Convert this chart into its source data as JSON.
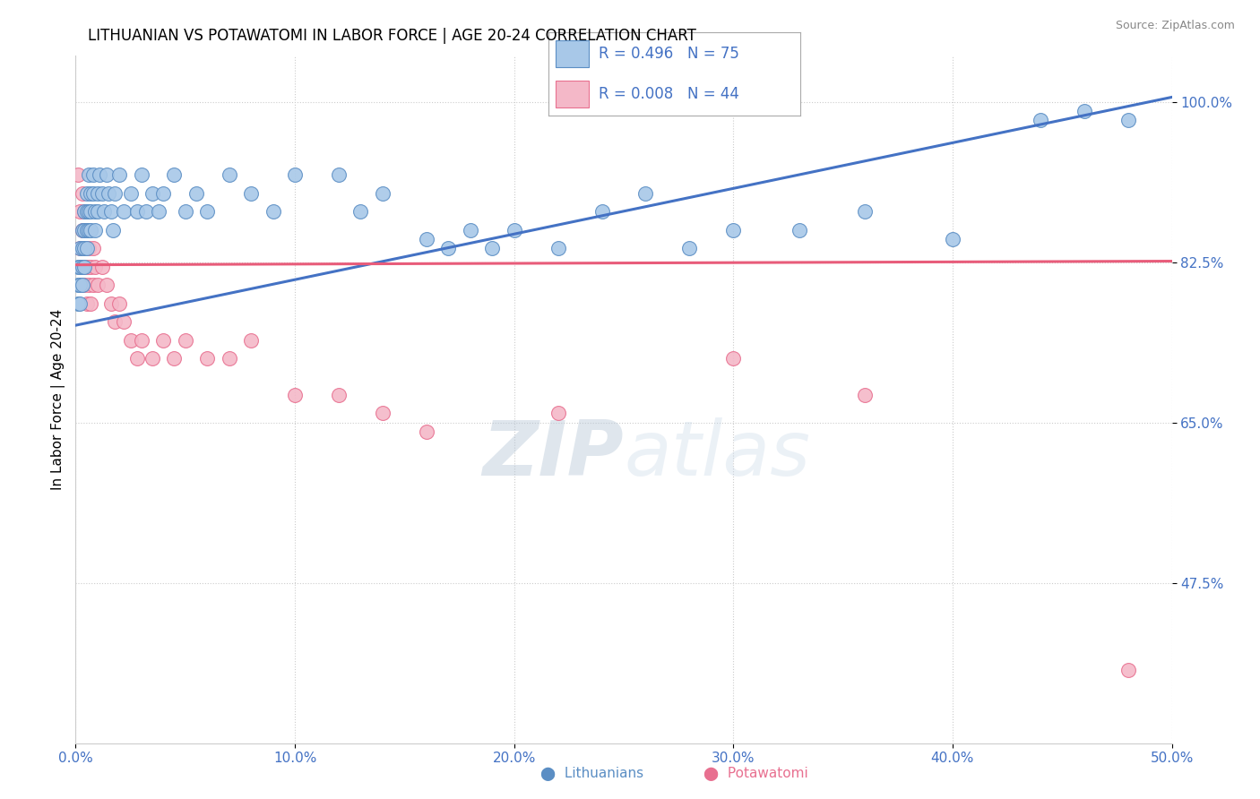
{
  "title": "LITHUANIAN VS POTAWATOMI IN LABOR FORCE | AGE 20-24 CORRELATION CHART",
  "source": "Source: ZipAtlas.com",
  "ylabel": "In Labor Force | Age 20-24",
  "xlim": [
    0.0,
    0.5
  ],
  "ylim": [
    0.3,
    1.05
  ],
  "xticks": [
    0.0,
    0.1,
    0.2,
    0.3,
    0.4,
    0.5
  ],
  "xticklabels": [
    "0.0%",
    "10.0%",
    "20.0%",
    "30.0%",
    "40.0%",
    "50.0%"
  ],
  "yticks": [
    0.475,
    0.65,
    0.825,
    1.0
  ],
  "yticklabels": [
    "47.5%",
    "65.0%",
    "82.5%",
    "100.0%"
  ],
  "grid_color": "#cccccc",
  "background_color": "#ffffff",
  "legend_blue_r": "R = 0.496",
  "legend_blue_n": "N = 75",
  "legend_pink_r": "R = 0.008",
  "legend_pink_n": "N = 44",
  "blue_color": "#A8C8E8",
  "pink_color": "#F4B8C8",
  "blue_edge_color": "#5B8EC4",
  "pink_edge_color": "#E87090",
  "blue_line_color": "#4472C4",
  "pink_line_color": "#E85C7A",
  "blue_trend": [
    0.0,
    0.756,
    0.5,
    1.005
  ],
  "pink_trend": [
    0.0,
    0.822,
    0.5,
    0.826
  ],
  "blue_scatter": [
    [
      0.001,
      0.82
    ],
    [
      0.001,
      0.8
    ],
    [
      0.001,
      0.78
    ],
    [
      0.002,
      0.84
    ],
    [
      0.002,
      0.82
    ],
    [
      0.002,
      0.8
    ],
    [
      0.002,
      0.78
    ],
    [
      0.003,
      0.86
    ],
    [
      0.003,
      0.84
    ],
    [
      0.003,
      0.82
    ],
    [
      0.003,
      0.8
    ],
    [
      0.004,
      0.88
    ],
    [
      0.004,
      0.86
    ],
    [
      0.004,
      0.84
    ],
    [
      0.004,
      0.82
    ],
    [
      0.005,
      0.9
    ],
    [
      0.005,
      0.88
    ],
    [
      0.005,
      0.86
    ],
    [
      0.005,
      0.84
    ],
    [
      0.006,
      0.92
    ],
    [
      0.006,
      0.88
    ],
    [
      0.006,
      0.86
    ],
    [
      0.007,
      0.9
    ],
    [
      0.007,
      0.88
    ],
    [
      0.007,
      0.86
    ],
    [
      0.008,
      0.92
    ],
    [
      0.008,
      0.9
    ],
    [
      0.009,
      0.88
    ],
    [
      0.009,
      0.86
    ],
    [
      0.01,
      0.9
    ],
    [
      0.01,
      0.88
    ],
    [
      0.011,
      0.92
    ],
    [
      0.012,
      0.9
    ],
    [
      0.013,
      0.88
    ],
    [
      0.014,
      0.92
    ],
    [
      0.015,
      0.9
    ],
    [
      0.016,
      0.88
    ],
    [
      0.017,
      0.86
    ],
    [
      0.018,
      0.9
    ],
    [
      0.02,
      0.92
    ],
    [
      0.022,
      0.88
    ],
    [
      0.025,
      0.9
    ],
    [
      0.028,
      0.88
    ],
    [
      0.03,
      0.92
    ],
    [
      0.032,
      0.88
    ],
    [
      0.035,
      0.9
    ],
    [
      0.038,
      0.88
    ],
    [
      0.04,
      0.9
    ],
    [
      0.045,
      0.92
    ],
    [
      0.05,
      0.88
    ],
    [
      0.055,
      0.9
    ],
    [
      0.06,
      0.88
    ],
    [
      0.07,
      0.92
    ],
    [
      0.08,
      0.9
    ],
    [
      0.09,
      0.88
    ],
    [
      0.1,
      0.92
    ],
    [
      0.12,
      0.92
    ],
    [
      0.13,
      0.88
    ],
    [
      0.14,
      0.9
    ],
    [
      0.16,
      0.85
    ],
    [
      0.17,
      0.84
    ],
    [
      0.18,
      0.86
    ],
    [
      0.19,
      0.84
    ],
    [
      0.2,
      0.86
    ],
    [
      0.22,
      0.84
    ],
    [
      0.24,
      0.88
    ],
    [
      0.26,
      0.9
    ],
    [
      0.28,
      0.84
    ],
    [
      0.3,
      0.86
    ],
    [
      0.33,
      0.86
    ],
    [
      0.36,
      0.88
    ],
    [
      0.4,
      0.85
    ],
    [
      0.44,
      0.98
    ],
    [
      0.46,
      0.99
    ],
    [
      0.48,
      0.98
    ]
  ],
  "pink_scatter": [
    [
      0.001,
      0.92
    ],
    [
      0.002,
      0.88
    ],
    [
      0.002,
      0.84
    ],
    [
      0.003,
      0.9
    ],
    [
      0.003,
      0.86
    ],
    [
      0.003,
      0.82
    ],
    [
      0.004,
      0.88
    ],
    [
      0.004,
      0.84
    ],
    [
      0.004,
      0.8
    ],
    [
      0.005,
      0.86
    ],
    [
      0.005,
      0.82
    ],
    [
      0.005,
      0.78
    ],
    [
      0.006,
      0.84
    ],
    [
      0.006,
      0.8
    ],
    [
      0.007,
      0.82
    ],
    [
      0.007,
      0.78
    ],
    [
      0.008,
      0.84
    ],
    [
      0.008,
      0.8
    ],
    [
      0.009,
      0.82
    ],
    [
      0.01,
      0.8
    ],
    [
      0.012,
      0.82
    ],
    [
      0.014,
      0.8
    ],
    [
      0.016,
      0.78
    ],
    [
      0.018,
      0.76
    ],
    [
      0.02,
      0.78
    ],
    [
      0.022,
      0.76
    ],
    [
      0.025,
      0.74
    ],
    [
      0.028,
      0.72
    ],
    [
      0.03,
      0.74
    ],
    [
      0.035,
      0.72
    ],
    [
      0.04,
      0.74
    ],
    [
      0.045,
      0.72
    ],
    [
      0.05,
      0.74
    ],
    [
      0.06,
      0.72
    ],
    [
      0.07,
      0.72
    ],
    [
      0.08,
      0.74
    ],
    [
      0.1,
      0.68
    ],
    [
      0.12,
      0.68
    ],
    [
      0.14,
      0.66
    ],
    [
      0.16,
      0.64
    ],
    [
      0.22,
      0.66
    ],
    [
      0.3,
      0.72
    ],
    [
      0.36,
      0.68
    ],
    [
      0.48,
      0.38
    ]
  ],
  "watermark_zip": "ZIP",
  "watermark_atlas": "atlas",
  "title_fontsize": 12,
  "axis_label_fontsize": 11,
  "tick_fontsize": 11,
  "legend_fontsize": 13
}
